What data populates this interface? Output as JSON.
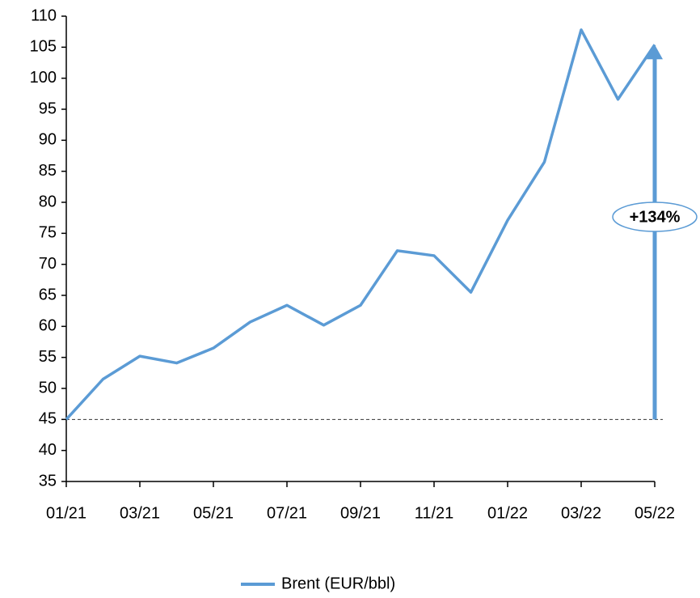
{
  "chart_data": {
    "type": "line",
    "categories": [
      "01/21",
      null,
      "03/21",
      null,
      "05/21",
      null,
      "07/21",
      null,
      "09/21",
      null,
      "11/21",
      null,
      "01/22",
      null,
      "03/22",
      null,
      "05/22"
    ],
    "series": [
      {
        "name": "Brent (EUR/bbl)",
        "color": "#5b9bd5",
        "values": [
          45,
          51.5,
          55.2,
          54.1,
          56.5,
          60.7,
          63.4,
          60.2,
          63.4,
          72.2,
          71.4,
          65.5,
          77.1,
          86.5,
          107.8,
          96.6,
          105.4
        ]
      }
    ],
    "ylim": [
      35,
      110
    ],
    "yticks": [
      35,
      40,
      45,
      50,
      55,
      60,
      65,
      70,
      75,
      80,
      85,
      90,
      95,
      100,
      105,
      110
    ],
    "reference_line": 45,
    "annotation": "+134%",
    "legend": "bottom"
  }
}
